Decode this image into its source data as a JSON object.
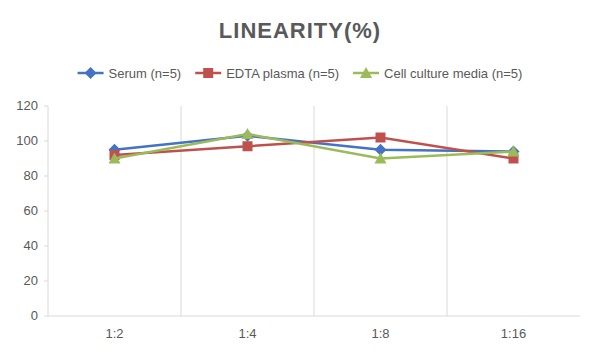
{
  "chart_data": {
    "type": "line",
    "title": "LINEARITY(%)",
    "categories": [
      "1:2",
      "1:4",
      "1:8",
      "1:16"
    ],
    "series": [
      {
        "name": "Serum (n=5)",
        "color": "#4472c4",
        "marker": "diamond",
        "values": [
          95,
          103,
          95,
          94
        ]
      },
      {
        "name": "EDTA plasma (n=5)",
        "color": "#c0504d",
        "marker": "square",
        "values": [
          92,
          97,
          102,
          90
        ]
      },
      {
        "name": "Cell culture media (n=5)",
        "color": "#9bbb59",
        "marker": "triangle",
        "values": [
          90,
          104,
          90,
          94
        ]
      }
    ],
    "ylim": [
      0,
      120
    ],
    "yticks": [
      0,
      20,
      40,
      60,
      80,
      100,
      120
    ],
    "grid": true,
    "legend": "top"
  }
}
